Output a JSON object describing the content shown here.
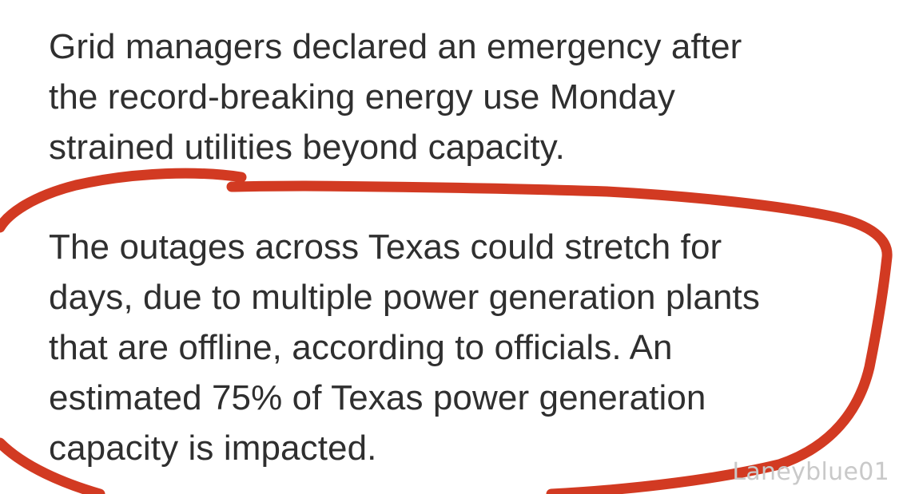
{
  "article": {
    "paragraph1": {
      "lines": [
        "Grid managers declared an emergency after",
        "the record-breaking energy use Monday",
        "strained utilities beyond capacity."
      ]
    },
    "paragraph2": {
      "lines": [
        "The outages across Texas could stretch for",
        "days, due to multiple power generation plants",
        "that are offline, according to officials. An",
        "estimated 75% of Texas power generation",
        "capacity is impacted."
      ]
    }
  },
  "annotation": {
    "color": "#d23a22"
  },
  "watermark": {
    "text": "Laneyblue01"
  }
}
